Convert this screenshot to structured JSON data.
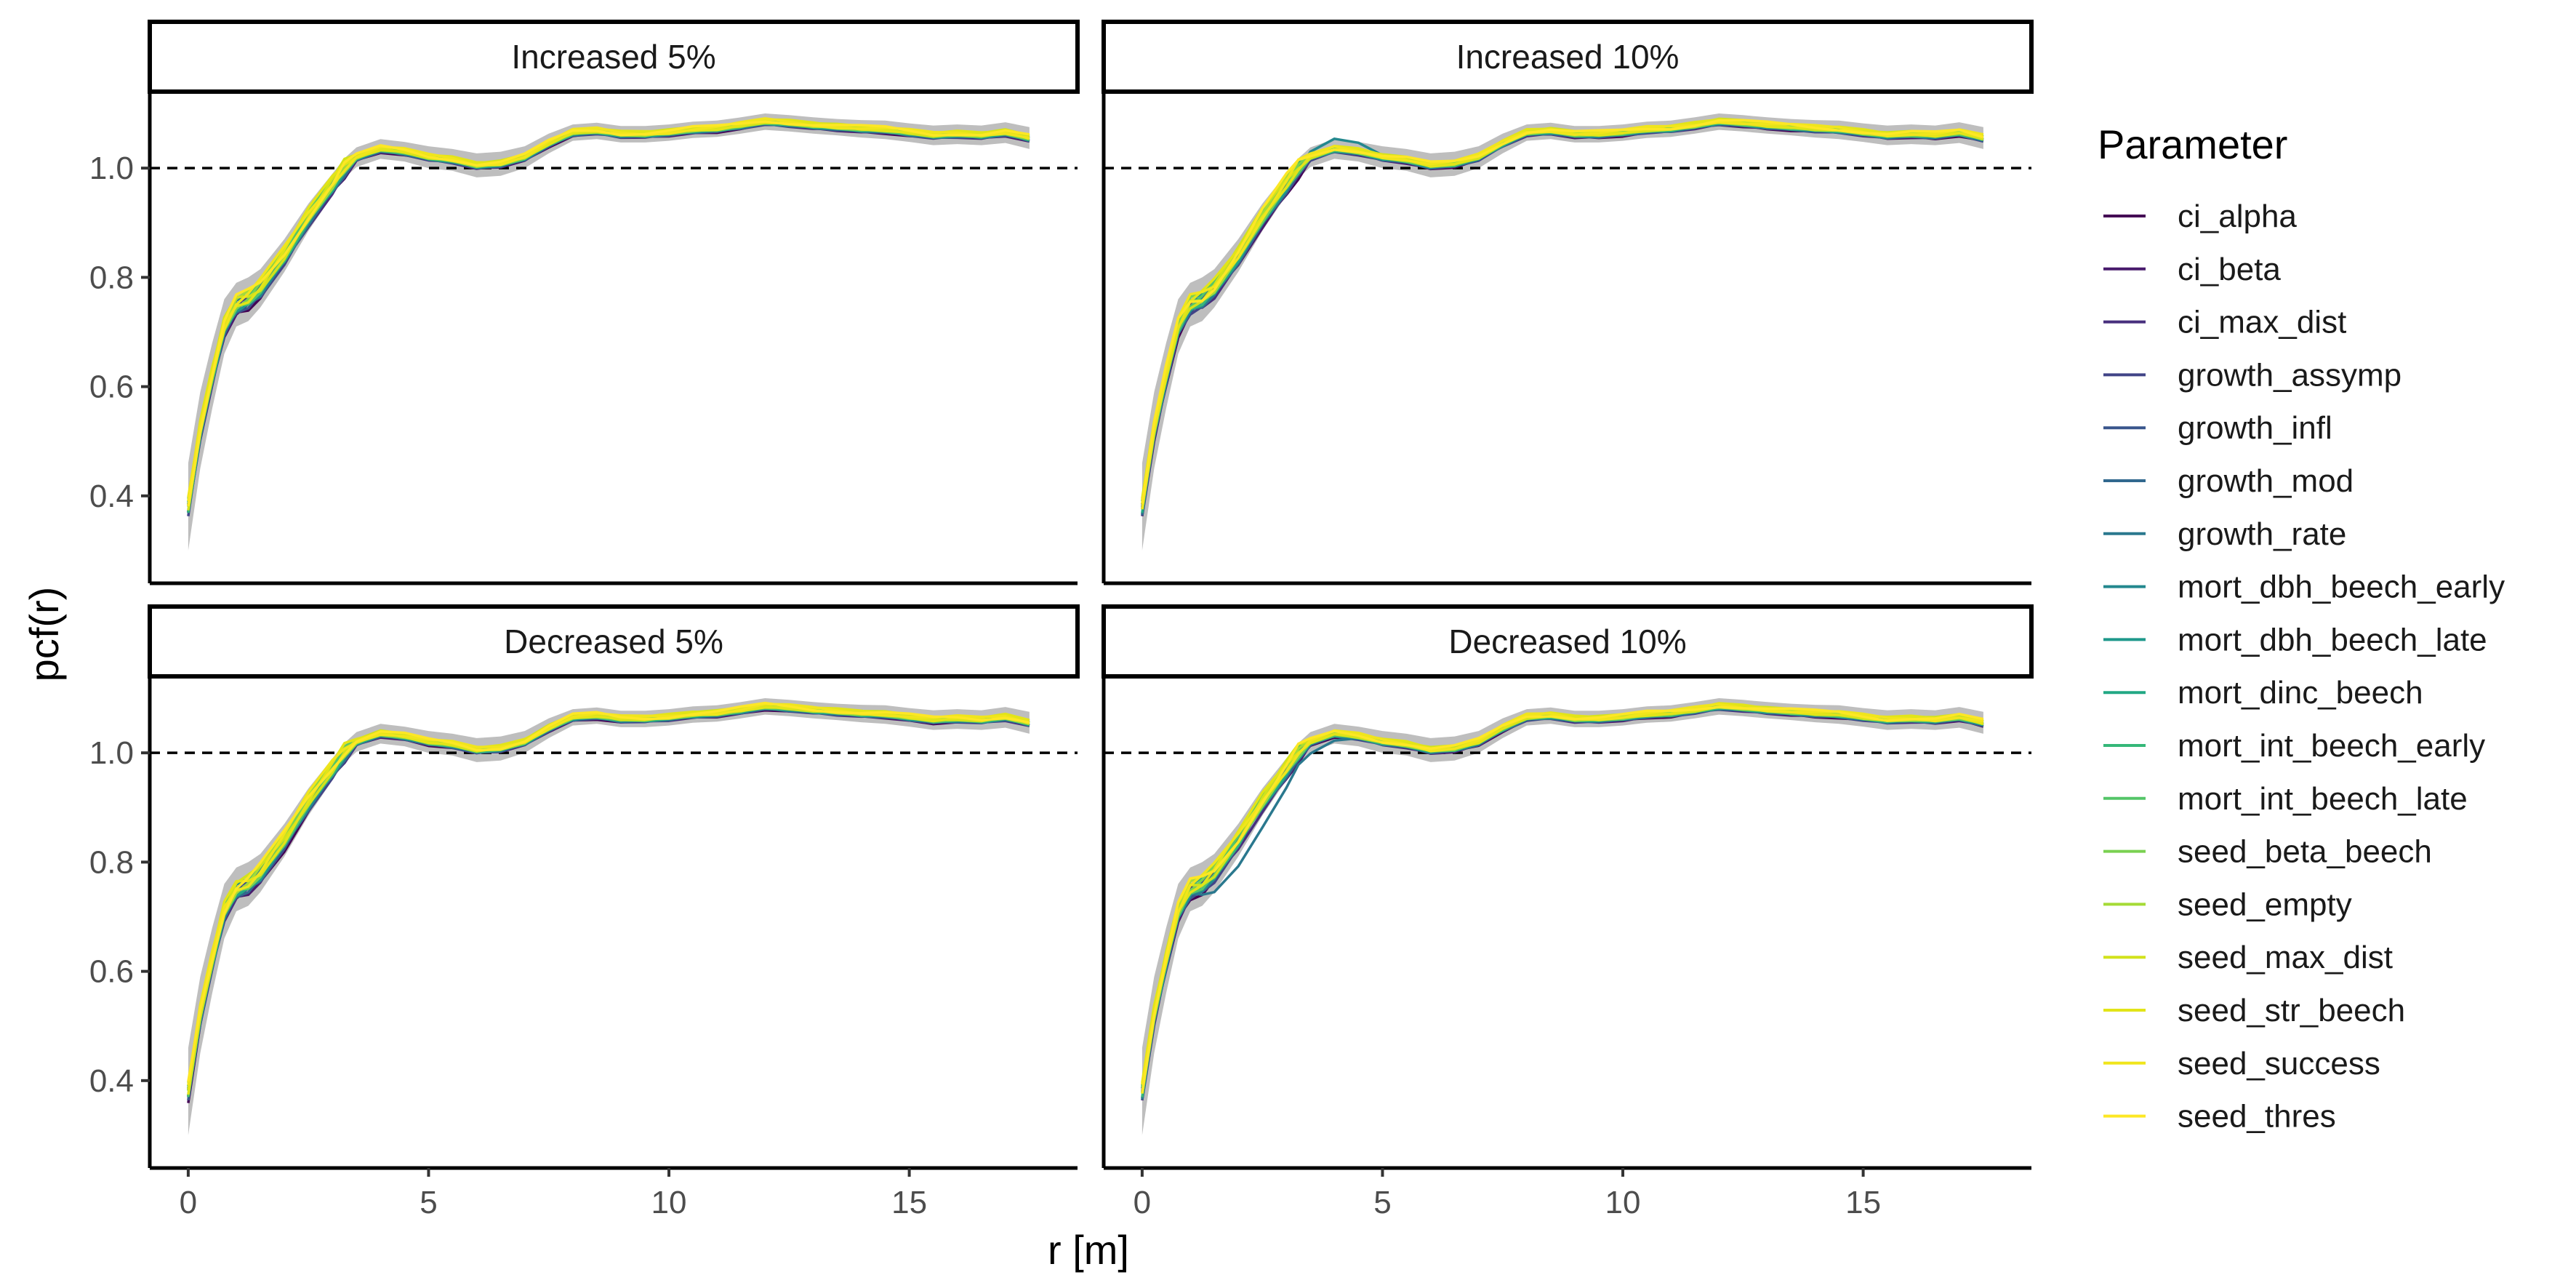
{
  "chart_data": {
    "type": "line",
    "panels": [
      {
        "title": "Increased 5%",
        "variant": 0
      },
      {
        "title": "Increased 10%",
        "variant": 1
      },
      {
        "title": "Decreased 5%",
        "variant": 2
      },
      {
        "title": "Decreased 10%",
        "variant": 3
      }
    ],
    "xlabel": "r [m]",
    "ylabel": "pcf(r)",
    "xlim": [
      -0.8,
      18.5
    ],
    "ylim": [
      0.24,
      1.14
    ],
    "xticks": [
      0,
      5,
      10,
      15
    ],
    "yticks": [
      0.4,
      0.6,
      0.8,
      1.0
    ],
    "ytick_labels": [
      "0.4",
      "0.6",
      "0.8",
      "1.0"
    ],
    "reference_line": 1.0,
    "x": [
      0,
      0.25,
      0.5,
      0.75,
      1.0,
      1.25,
      1.5,
      2.0,
      2.5,
      3.0,
      3.25,
      3.5,
      4.0,
      4.5,
      5.0,
      5.5,
      6.0,
      6.5,
      7.0,
      7.5,
      8.0,
      8.5,
      9.0,
      9.5,
      10.0,
      10.5,
      11.0,
      11.5,
      12.0,
      12.5,
      13.0,
      13.5,
      14.0,
      14.5,
      15.0,
      15.5,
      16.0,
      16.5,
      17.0,
      17.5
    ],
    "mean_curve": [
      0.38,
      0.52,
      0.62,
      0.71,
      0.75,
      0.76,
      0.78,
      0.84,
      0.91,
      0.97,
      1.0,
      1.02,
      1.035,
      1.03,
      1.02,
      1.015,
      1.005,
      1.008,
      1.02,
      1.045,
      1.065,
      1.068,
      1.062,
      1.062,
      1.065,
      1.07,
      1.072,
      1.078,
      1.085,
      1.082,
      1.078,
      1.075,
      1.072,
      1.07,
      1.065,
      1.06,
      1.062,
      1.06,
      1.065,
      1.055
    ],
    "envelope_halfwidth": [
      0.08,
      0.07,
      0.06,
      0.05,
      0.04,
      0.04,
      0.035,
      0.03,
      0.025,
      0.02,
      0.018,
      0.018,
      0.018,
      0.018,
      0.02,
      0.02,
      0.022,
      0.022,
      0.02,
      0.018,
      0.015,
      0.015,
      0.015,
      0.015,
      0.015,
      0.015,
      0.015,
      0.015,
      0.015,
      0.015,
      0.015,
      0.015,
      0.016,
      0.017,
      0.017,
      0.018,
      0.018,
      0.018,
      0.019,
      0.02
    ],
    "envelope_color": "#bebebe",
    "legend": {
      "title": "Parameter",
      "position": "right"
    },
    "series": [
      {
        "name": "ci_alpha",
        "color": "#440154"
      },
      {
        "name": "ci_beta",
        "color": "#481A6C"
      },
      {
        "name": "ci_max_dist",
        "color": "#472F7D"
      },
      {
        "name": "growth_assymp",
        "color": "#414487"
      },
      {
        "name": "growth_infl",
        "color": "#39568C"
      },
      {
        "name": "growth_mod",
        "color": "#31688E"
      },
      {
        "name": "growth_rate",
        "color": "#2A788E"
      },
      {
        "name": "mort_dbh_beech_early",
        "color": "#23888E"
      },
      {
        "name": "mort_dbh_beech_late",
        "color": "#1F988B"
      },
      {
        "name": "mort_dinc_beech",
        "color": "#22A884"
      },
      {
        "name": "mort_int_beech_early",
        "color": "#35B779"
      },
      {
        "name": "mort_int_beech_late",
        "color": "#54C568"
      },
      {
        "name": "seed_beta_beech",
        "color": "#7AD151"
      },
      {
        "name": "seed_empty",
        "color": "#A5DB36"
      },
      {
        "name": "seed_max_dist",
        "color": "#D2E21B"
      },
      {
        "name": "seed_str_beech",
        "color": "#E2E418"
      },
      {
        "name": "seed_success",
        "color": "#F0E51C"
      },
      {
        "name": "seed_thres",
        "color": "#FDE725"
      }
    ]
  }
}
